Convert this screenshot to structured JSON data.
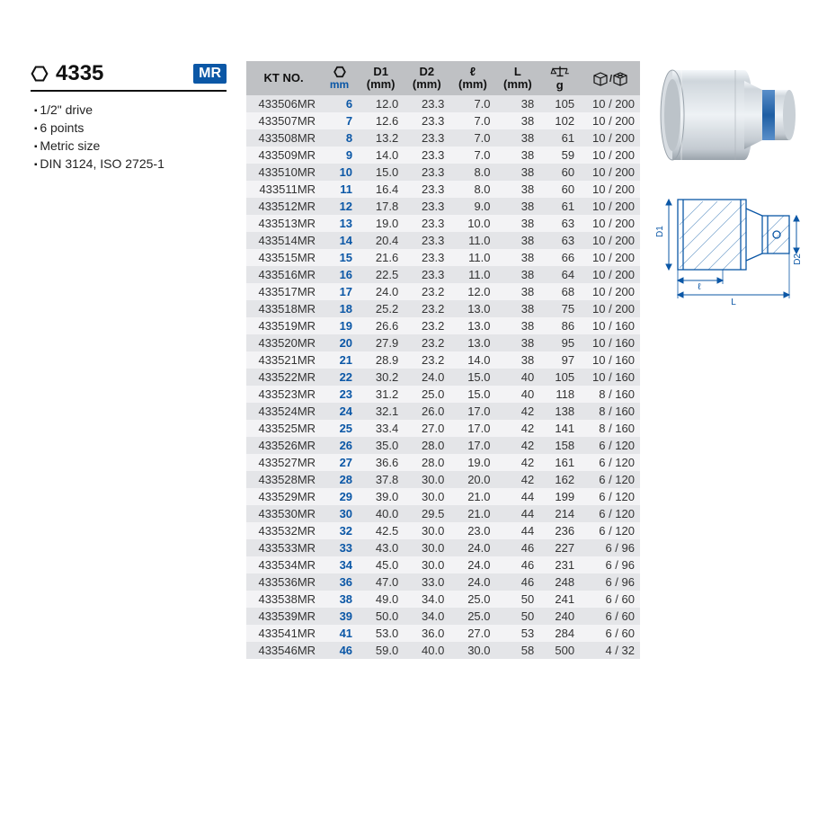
{
  "model": {
    "number": "4335",
    "badge": "MR"
  },
  "specs": [
    "1/2\" drive",
    "6 points",
    "Metric size",
    "DIN 3124, ISO 2725-1"
  ],
  "table": {
    "columns": [
      {
        "key": "kt",
        "label": "KT NO.",
        "cls": "kt"
      },
      {
        "key": "mm",
        "label": "hex",
        "sub": "mm",
        "cls": "mm",
        "isHexHeader": true
      },
      {
        "key": "d1",
        "label": "D1",
        "sub": "(mm)",
        "cls": "d1"
      },
      {
        "key": "d2",
        "label": "D2",
        "sub": "(mm)",
        "cls": "d2"
      },
      {
        "key": "l1",
        "label": "ℓ",
        "sub": "(mm)",
        "cls": "l1"
      },
      {
        "key": "l2",
        "label": "L",
        "sub": "(mm)",
        "cls": "l2"
      },
      {
        "key": "g",
        "label": "g",
        "cls": "g",
        "isScaleHeader": true
      },
      {
        "key": "pack",
        "label": "pack",
        "cls": "pack",
        "isPackHeader": true
      }
    ],
    "mm_color": "#0b57a6",
    "row_bg_odd": "#e4e5e8",
    "row_bg_even": "#f3f3f5",
    "header_bg": "#bfc1c4",
    "rows": [
      {
        "kt": "433506MR",
        "mm": "6",
        "d1": "12.0",
        "d2": "23.3",
        "l1": "7.0",
        "l2": "38",
        "g": "105",
        "pack": "10 / 200"
      },
      {
        "kt": "433507MR",
        "mm": "7",
        "d1": "12.6",
        "d2": "23.3",
        "l1": "7.0",
        "l2": "38",
        "g": "102",
        "pack": "10 / 200"
      },
      {
        "kt": "433508MR",
        "mm": "8",
        "d1": "13.2",
        "d2": "23.3",
        "l1": "7.0",
        "l2": "38",
        "g": "61",
        "pack": "10 / 200"
      },
      {
        "kt": "433509MR",
        "mm": "9",
        "d1": "14.0",
        "d2": "23.3",
        "l1": "7.0",
        "l2": "38",
        "g": "59",
        "pack": "10 / 200"
      },
      {
        "kt": "433510MR",
        "mm": "10",
        "d1": "15.0",
        "d2": "23.3",
        "l1": "8.0",
        "l2": "38",
        "g": "60",
        "pack": "10 / 200"
      },
      {
        "kt": "433511MR",
        "mm": "11",
        "d1": "16.4",
        "d2": "23.3",
        "l1": "8.0",
        "l2": "38",
        "g": "60",
        "pack": "10 / 200"
      },
      {
        "kt": "433512MR",
        "mm": "12",
        "d1": "17.8",
        "d2": "23.3",
        "l1": "9.0",
        "l2": "38",
        "g": "61",
        "pack": "10 / 200"
      },
      {
        "kt": "433513MR",
        "mm": "13",
        "d1": "19.0",
        "d2": "23.3",
        "l1": "10.0",
        "l2": "38",
        "g": "63",
        "pack": "10 / 200"
      },
      {
        "kt": "433514MR",
        "mm": "14",
        "d1": "20.4",
        "d2": "23.3",
        "l1": "11.0",
        "l2": "38",
        "g": "63",
        "pack": "10 / 200"
      },
      {
        "kt": "433515MR",
        "mm": "15",
        "d1": "21.6",
        "d2": "23.3",
        "l1": "11.0",
        "l2": "38",
        "g": "66",
        "pack": "10 / 200"
      },
      {
        "kt": "433516MR",
        "mm": "16",
        "d1": "22.5",
        "d2": "23.3",
        "l1": "11.0",
        "l2": "38",
        "g": "64",
        "pack": "10 / 200"
      },
      {
        "kt": "433517MR",
        "mm": "17",
        "d1": "24.0",
        "d2": "23.2",
        "l1": "12.0",
        "l2": "38",
        "g": "68",
        "pack": "10 / 200"
      },
      {
        "kt": "433518MR",
        "mm": "18",
        "d1": "25.2",
        "d2": "23.2",
        "l1": "13.0",
        "l2": "38",
        "g": "75",
        "pack": "10 / 200"
      },
      {
        "kt": "433519MR",
        "mm": "19",
        "d1": "26.6",
        "d2": "23.2",
        "l1": "13.0",
        "l2": "38",
        "g": "86",
        "pack": "10 / 160"
      },
      {
        "kt": "433520MR",
        "mm": "20",
        "d1": "27.9",
        "d2": "23.2",
        "l1": "13.0",
        "l2": "38",
        "g": "95",
        "pack": "10 / 160"
      },
      {
        "kt": "433521MR",
        "mm": "21",
        "d1": "28.9",
        "d2": "23.2",
        "l1": "14.0",
        "l2": "38",
        "g": "97",
        "pack": "10 / 160"
      },
      {
        "kt": "433522MR",
        "mm": "22",
        "d1": "30.2",
        "d2": "24.0",
        "l1": "15.0",
        "l2": "40",
        "g": "105",
        "pack": "10 / 160"
      },
      {
        "kt": "433523MR",
        "mm": "23",
        "d1": "31.2",
        "d2": "25.0",
        "l1": "15.0",
        "l2": "40",
        "g": "118",
        "pack": "8 / 160"
      },
      {
        "kt": "433524MR",
        "mm": "24",
        "d1": "32.1",
        "d2": "26.0",
        "l1": "17.0",
        "l2": "42",
        "g": "138",
        "pack": "8 / 160"
      },
      {
        "kt": "433525MR",
        "mm": "25",
        "d1": "33.4",
        "d2": "27.0",
        "l1": "17.0",
        "l2": "42",
        "g": "141",
        "pack": "8 / 160"
      },
      {
        "kt": "433526MR",
        "mm": "26",
        "d1": "35.0",
        "d2": "28.0",
        "l1": "17.0",
        "l2": "42",
        "g": "158",
        "pack": "6 / 120"
      },
      {
        "kt": "433527MR",
        "mm": "27",
        "d1": "36.6",
        "d2": "28.0",
        "l1": "19.0",
        "l2": "42",
        "g": "161",
        "pack": "6 / 120"
      },
      {
        "kt": "433528MR",
        "mm": "28",
        "d1": "37.8",
        "d2": "30.0",
        "l1": "20.0",
        "l2": "42",
        "g": "162",
        "pack": "6 / 120"
      },
      {
        "kt": "433529MR",
        "mm": "29",
        "d1": "39.0",
        "d2": "30.0",
        "l1": "21.0",
        "l2": "44",
        "g": "199",
        "pack": "6 / 120"
      },
      {
        "kt": "433530MR",
        "mm": "30",
        "d1": "40.0",
        "d2": "29.5",
        "l1": "21.0",
        "l2": "44",
        "g": "214",
        "pack": "6 / 120"
      },
      {
        "kt": "433532MR",
        "mm": "32",
        "d1": "42.5",
        "d2": "30.0",
        "l1": "23.0",
        "l2": "44",
        "g": "236",
        "pack": "6 / 120"
      },
      {
        "kt": "433533MR",
        "mm": "33",
        "d1": "43.0",
        "d2": "30.0",
        "l1": "24.0",
        "l2": "46",
        "g": "227",
        "pack": "6 / 96"
      },
      {
        "kt": "433534MR",
        "mm": "34",
        "d1": "45.0",
        "d2": "30.0",
        "l1": "24.0",
        "l2": "46",
        "g": "231",
        "pack": "6 / 96"
      },
      {
        "kt": "433536MR",
        "mm": "36",
        "d1": "47.0",
        "d2": "33.0",
        "l1": "24.0",
        "l2": "46",
        "g": "248",
        "pack": "6 / 96"
      },
      {
        "kt": "433538MR",
        "mm": "38",
        "d1": "49.0",
        "d2": "34.0",
        "l1": "25.0",
        "l2": "50",
        "g": "241",
        "pack": "6 / 60"
      },
      {
        "kt": "433539MR",
        "mm": "39",
        "d1": "50.0",
        "d2": "34.0",
        "l1": "25.0",
        "l2": "50",
        "g": "240",
        "pack": "6 / 60"
      },
      {
        "kt": "433541MR",
        "mm": "41",
        "d1": "53.0",
        "d2": "36.0",
        "l1": "27.0",
        "l2": "53",
        "g": "284",
        "pack": "6 / 60"
      },
      {
        "kt": "433546MR",
        "mm": "46",
        "d1": "59.0",
        "d2": "40.0",
        "l1": "30.0",
        "l2": "58",
        "g": "500",
        "pack": "4 / 32"
      }
    ]
  },
  "diagram_labels": {
    "d1": "D1",
    "d2": "D2",
    "l": "ℓ",
    "L": "L"
  },
  "colors": {
    "accent_blue": "#0b57a6",
    "socket_ring": "#2f6fb0",
    "socket_body_light": "#e9eef2",
    "socket_body_dark": "#b6bec6"
  }
}
